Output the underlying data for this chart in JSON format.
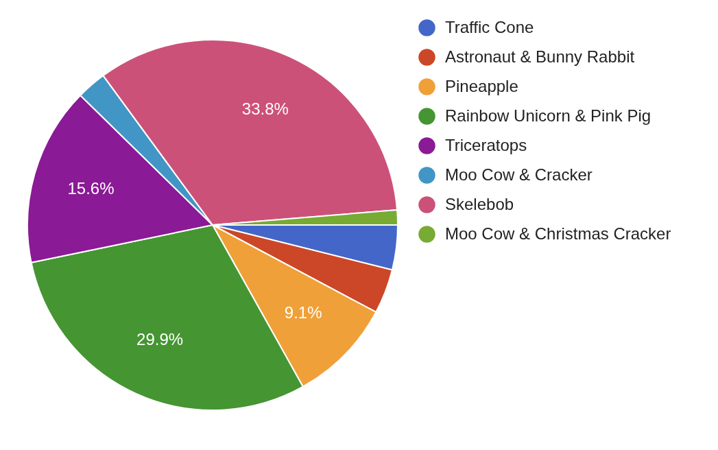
{
  "chart_data": {
    "type": "pie",
    "categories": [
      "Traffic Cone",
      "Astronaut & Bunny Rabbit",
      "Pineapple",
      "Rainbow Unicorn & Pink Pig",
      "Triceratops",
      "Moo Cow & Cracker",
      "Skelebob",
      "Moo Cow & Christmas Cracker"
    ],
    "values": [
      3.9,
      3.9,
      9.1,
      29.9,
      15.6,
      2.6,
      33.8,
      1.3
    ],
    "colors": [
      "#4366c8",
      "#cc4727",
      "#f0a038",
      "#459532",
      "#8a1a96",
      "#4196c6",
      "#cc5179",
      "#77ab33"
    ],
    "value_labels": [
      null,
      null,
      "9.1%",
      "29.9%",
      "15.6%",
      null,
      "33.8%",
      null
    ],
    "legend": "right"
  }
}
